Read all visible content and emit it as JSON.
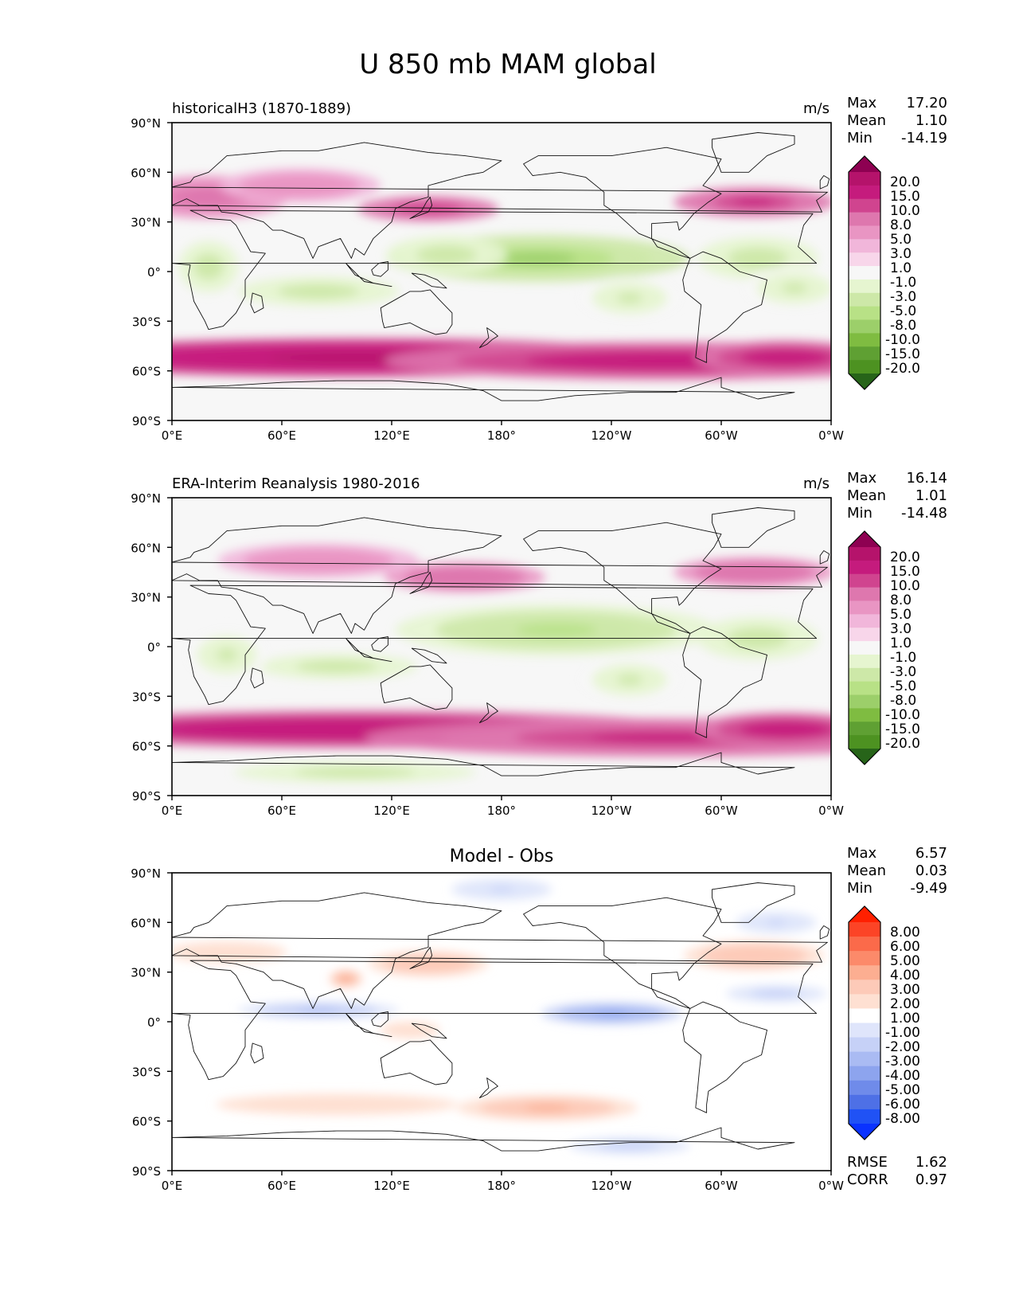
{
  "figure": {
    "title": "U 850 mb MAM global"
  },
  "axes": {
    "lat_ticks": [
      "90°N",
      "60°N",
      "30°N",
      "0°",
      "30°S",
      "60°S",
      "90°S"
    ],
    "lon_ticks": [
      "0°E",
      "60°E",
      "120°E",
      "180°",
      "120°W",
      "60°W",
      "0°W"
    ]
  },
  "panels": [
    {
      "id": "model",
      "title": "historicalH3 (1870-1889)",
      "units": "m/s",
      "stats": [
        {
          "label": "Max",
          "value": "17.20"
        },
        {
          "label": "Mean",
          "value": "1.10"
        },
        {
          "label": "Min",
          "value": "-14.19"
        }
      ],
      "colorbar_labels": [
        "20.0",
        "15.0",
        "10.0",
        "8.0",
        "5.0",
        "3.0",
        "1.0",
        "-1.0",
        "-3.0",
        "-5.0",
        "-8.0",
        "-10.0",
        "-15.0",
        "-20.0"
      ],
      "palette": "piyg"
    },
    {
      "id": "obs",
      "title": "ERA-Interim Reanalysis 1980-2016",
      "units": "m/s",
      "stats": [
        {
          "label": "Max",
          "value": "16.14"
        },
        {
          "label": "Mean",
          "value": "1.01"
        },
        {
          "label": "Min",
          "value": "-14.48"
        }
      ],
      "colorbar_labels": [
        "20.0",
        "15.0",
        "10.0",
        "8.0",
        "5.0",
        "3.0",
        "1.0",
        "-1.0",
        "-3.0",
        "-5.0",
        "-8.0",
        "-10.0",
        "-15.0",
        "-20.0"
      ],
      "palette": "piyg"
    },
    {
      "id": "diff",
      "title": "Model - Obs",
      "units": "",
      "stats": [
        {
          "label": "Max",
          "value": "6.57"
        },
        {
          "label": "Mean",
          "value": "0.03"
        },
        {
          "label": "Min",
          "value": "-9.49"
        }
      ],
      "colorbar_labels": [
        "8.00",
        "6.00",
        "5.00",
        "4.00",
        "3.00",
        "2.00",
        "1.00",
        "-1.00",
        "-2.00",
        "-3.00",
        "-4.00",
        "-5.00",
        "-6.00",
        "-8.00"
      ],
      "palette": "bwr",
      "metrics": [
        {
          "label": "RMSE",
          "value": "1.62"
        },
        {
          "label": "CORR",
          "value": "0.97"
        }
      ]
    }
  ],
  "colors": {
    "piyg": [
      "#8e0152",
      "#b5136b",
      "#c51b7d",
      "#d0448f",
      "#de77ae",
      "#e995c3",
      "#f1b6da",
      "#f8d6ea",
      "#f7f7f7",
      "#e6f5d0",
      "#cde8a8",
      "#b8e186",
      "#9ccf6a",
      "#7fbc41",
      "#5fa033",
      "#4d9221",
      "#276419"
    ],
    "bwr": [
      "#ff2000",
      "#fc4426",
      "#fb6a4a",
      "#fc8a6a",
      "#fcae91",
      "#fdcab8",
      "#fee0d2",
      "#ffffff",
      "#dfe5fb",
      "#c6d1f7",
      "#aabbf3",
      "#8da4ee",
      "#6f8bea",
      "#4e70e6",
      "#2052f5",
      "#0a32ff"
    ]
  },
  "chart_data": [
    {
      "type": "heatmap",
      "title": "historicalH3 (1870-1889)",
      "variable": "U 850 mb MAM global",
      "units": "m/s",
      "xlabel": "",
      "ylabel": "",
      "xlim": [
        0,
        360
      ],
      "ylim": [
        -90,
        90
      ],
      "contour_levels": [
        -20,
        -15,
        -10,
        -8,
        -5,
        -3,
        -1,
        1,
        3,
        5,
        8,
        10,
        15,
        20
      ],
      "stats": {
        "max": 17.2,
        "mean": 1.1,
        "min": -14.19
      },
      "features": [
        {
          "lon": 100,
          "lat": -52,
          "value": 16,
          "dlon": 170,
          "dlat": 9
        },
        {
          "lon": 270,
          "lat": -54,
          "value": 12,
          "dlon": 140,
          "dlat": 9
        },
        {
          "lon": 335,
          "lat": -52,
          "value": 12,
          "dlon": 45,
          "dlat": 8
        },
        {
          "lon": 140,
          "lat": 38,
          "value": 10,
          "dlon": 35,
          "dlat": 6
        },
        {
          "lon": 318,
          "lat": 42,
          "value": 11,
          "dlon": 40,
          "dlat": 7
        },
        {
          "lon": 20,
          "lat": 45,
          "value": 6,
          "dlon": 40,
          "dlat": 10
        },
        {
          "lon": 70,
          "lat": 52,
          "value": 5,
          "dlon": 40,
          "dlat": 8
        },
        {
          "lon": 200,
          "lat": 8,
          "value": -10,
          "dlon": 75,
          "dlat": 11
        },
        {
          "lon": 150,
          "lat": 10,
          "value": -7,
          "dlon": 30,
          "dlat": 9
        },
        {
          "lon": 80,
          "lat": -12,
          "value": -7,
          "dlon": 40,
          "dlat": 7
        },
        {
          "lon": 20,
          "lat": 3,
          "value": -6,
          "dlon": 15,
          "dlat": 12
        },
        {
          "lon": 320,
          "lat": 8,
          "value": -7,
          "dlon": 30,
          "dlat": 10
        },
        {
          "lon": 250,
          "lat": -16,
          "value": -5,
          "dlon": 25,
          "dlat": 10
        },
        {
          "lon": 340,
          "lat": -10,
          "value": -5,
          "dlon": 25,
          "dlat": 10
        }
      ]
    },
    {
      "type": "heatmap",
      "title": "ERA-Interim Reanalysis 1980-2016",
      "variable": "U 850 mb MAM global",
      "units": "m/s",
      "xlabel": "",
      "ylabel": "",
      "xlim": [
        0,
        360
      ],
      "ylim": [
        -90,
        90
      ],
      "contour_levels": [
        -20,
        -15,
        -10,
        -8,
        -5,
        -3,
        -1,
        1,
        3,
        5,
        8,
        10,
        15,
        20
      ],
      "stats": {
        "max": 16.14,
        "mean": 1.01,
        "min": -14.48
      },
      "features": [
        {
          "lon": 100,
          "lat": -50,
          "value": 15,
          "dlon": 170,
          "dlat": 9
        },
        {
          "lon": 270,
          "lat": -55,
          "value": 11,
          "dlon": 150,
          "dlat": 9
        },
        {
          "lon": 335,
          "lat": -50,
          "value": 12,
          "dlon": 45,
          "dlat": 8
        },
        {
          "lon": 160,
          "lat": 42,
          "value": 8,
          "dlon": 40,
          "dlat": 7
        },
        {
          "lon": 318,
          "lat": 45,
          "value": 8,
          "dlon": 40,
          "dlat": 7
        },
        {
          "lon": 80,
          "lat": 52,
          "value": 5,
          "dlon": 50,
          "dlat": 8
        },
        {
          "lon": 210,
          "lat": 10,
          "value": -9,
          "dlon": 80,
          "dlat": 12
        },
        {
          "lon": 90,
          "lat": -12,
          "value": -7,
          "dlon": 40,
          "dlat": 6
        },
        {
          "lon": 30,
          "lat": -5,
          "value": -5,
          "dlon": 20,
          "dlat": 12
        },
        {
          "lon": 320,
          "lat": 5,
          "value": -6,
          "dlon": 30,
          "dlat": 10
        },
        {
          "lon": 100,
          "lat": -76,
          "value": -6,
          "dlon": 60,
          "dlat": 5
        },
        {
          "lon": 250,
          "lat": -20,
          "value": -5,
          "dlon": 25,
          "dlat": 10
        }
      ]
    },
    {
      "type": "heatmap",
      "title": "Model - Obs",
      "variable": "U 850 mb MAM global",
      "units": "m/s",
      "xlabel": "",
      "ylabel": "",
      "xlim": [
        0,
        360
      ],
      "ylim": [
        -90,
        90
      ],
      "contour_levels": [
        -8,
        -6,
        -5,
        -4,
        -3,
        -2,
        -1,
        1,
        2,
        3,
        4,
        5,
        6,
        8
      ],
      "stats": {
        "max": 6.57,
        "mean": 0.03,
        "min": -9.49,
        "rmse": 1.62,
        "corr": 0.97
      },
      "features": [
        {
          "lon": 205,
          "lat": -52,
          "value": 3.5,
          "dlon": 45,
          "dlat": 6
        },
        {
          "lon": 90,
          "lat": -50,
          "value": 2.0,
          "dlon": 60,
          "dlat": 5
        },
        {
          "lon": 140,
          "lat": 35,
          "value": 3.0,
          "dlon": 30,
          "dlat": 6
        },
        {
          "lon": 95,
          "lat": 26,
          "value": 4.0,
          "dlon": 8,
          "dlat": 4
        },
        {
          "lon": 318,
          "lat": 40,
          "value": 3.0,
          "dlon": 35,
          "dlat": 7
        },
        {
          "lon": 30,
          "lat": 42,
          "value": 2.0,
          "dlon": 30,
          "dlat": 5
        },
        {
          "lon": 130,
          "lat": -5,
          "value": 2.0,
          "dlon": 15,
          "dlat": 4
        },
        {
          "lon": 80,
          "lat": 7,
          "value": -3.0,
          "dlon": 40,
          "dlat": 4
        },
        {
          "lon": 240,
          "lat": 5,
          "value": -4.5,
          "dlon": 35,
          "dlat": 5
        },
        {
          "lon": 330,
          "lat": 17,
          "value": -2.5,
          "dlon": 25,
          "dlat": 4
        },
        {
          "lon": 180,
          "lat": 80,
          "value": -2.0,
          "dlon": 25,
          "dlat": 5
        },
        {
          "lon": 250,
          "lat": -75,
          "value": -2.5,
          "dlon": 30,
          "dlat": 4
        },
        {
          "lon": 330,
          "lat": 60,
          "value": -2.0,
          "dlon": 20,
          "dlat": 5
        }
      ]
    }
  ]
}
